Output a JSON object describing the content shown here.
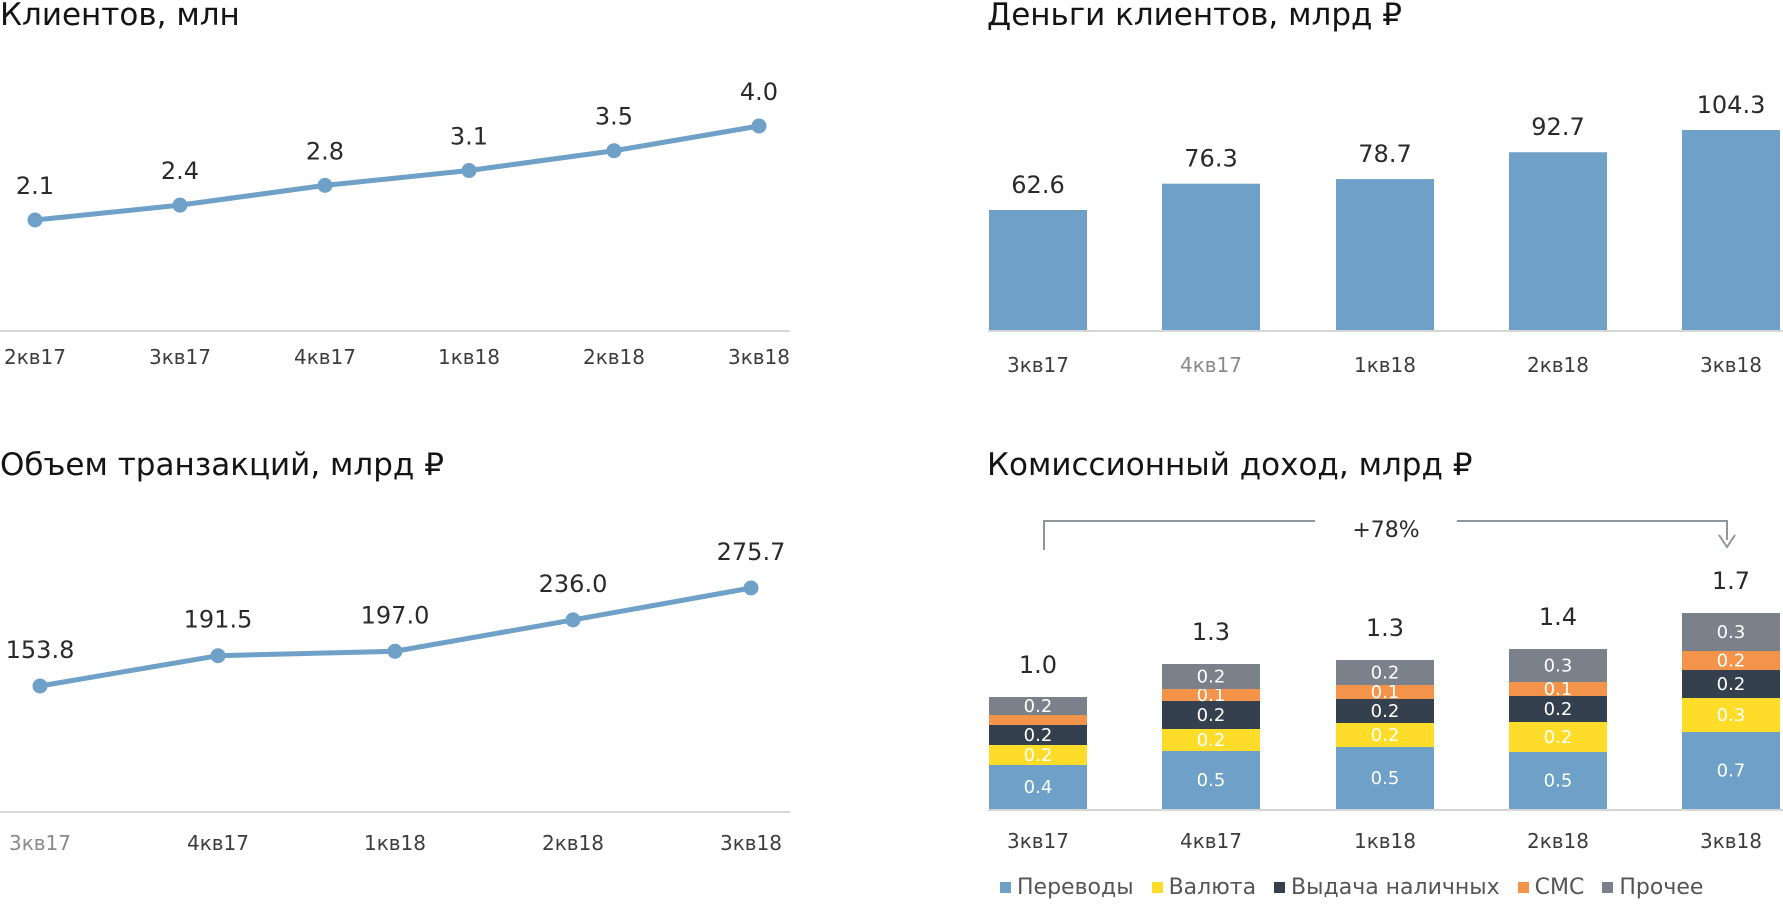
{
  "colors": {
    "line": "#6fa1c8",
    "axis": "#d6d6d6",
    "transfers": "#6fa1c8",
    "currency": "#fddc2a",
    "cash": "#34404e",
    "sms": "#f4944a",
    "other": "#7b818a",
    "bracket": "#8e969e"
  },
  "chart_data": [
    {
      "type": "line",
      "title": "Клиентов, млн",
      "categories": [
        "2кв17",
        "3кв17",
        "4кв17",
        "1кв18",
        "2кв18",
        "3кв18"
      ],
      "values": [
        2.1,
        2.4,
        2.8,
        3.1,
        3.5,
        4.0
      ],
      "value_labels": [
        "2.1",
        "2.4",
        "2.8",
        "3.1",
        "3.5",
        "4.0"
      ],
      "grid": false
    },
    {
      "type": "bar",
      "title": "Деньги клиентов, млрд ₽",
      "categories": [
        "3кв17",
        "4кв17",
        "1кв18",
        "2кв18",
        "3кв18"
      ],
      "values": [
        62.6,
        76.3,
        78.7,
        92.7,
        104.3
      ],
      "value_labels": [
        "62.6",
        "76.3",
        "78.7",
        "92.7",
        "104.3"
      ],
      "grid": false
    },
    {
      "type": "line",
      "title": "Объем транзакций, млрд ₽",
      "categories": [
        "3кв17",
        "4кв17",
        "1кв18",
        "2кв18",
        "3кв18"
      ],
      "values": [
        153.8,
        191.5,
        197.0,
        236.0,
        275.7
      ],
      "value_labels": [
        "153.8",
        "191.5",
        "197.0",
        "236.0",
        "275.7"
      ],
      "grid": false
    },
    {
      "type": "bar",
      "stacked": true,
      "title": "Комиссионный доход, млрд ₽",
      "categories": [
        "3кв17",
        "4кв17",
        "1кв18",
        "2кв18",
        "3кв18"
      ],
      "totals": [
        "1.0",
        "1.3",
        "1.3",
        "1.4",
        "1.7"
      ],
      "growth_label": "+78%",
      "legend_position": "bottom",
      "series": [
        {
          "name": "Переводы",
          "color_key": "transfers",
          "values": [
            0.4,
            0.5,
            0.5,
            0.5,
            0.7
          ],
          "labels": [
            "0.4",
            "0.5",
            "0.5",
            "0.5",
            "0.7"
          ]
        },
        {
          "name": "Валюта",
          "color_key": "currency",
          "values": [
            0.2,
            0.2,
            0.2,
            0.2,
            0.3
          ],
          "labels": [
            "0.2",
            "0.2",
            "0.2",
            "0.2",
            "0.3"
          ]
        },
        {
          "name": "Выдача наличных",
          "color_key": "cash",
          "values": [
            0.2,
            0.2,
            0.2,
            0.2,
            0.2
          ],
          "labels": [
            "0.2",
            "0.2",
            "0.2",
            "0.2",
            "0.2"
          ]
        },
        {
          "name": "СМС",
          "color_key": "sms",
          "values": [
            0.1,
            0.1,
            0.1,
            0.1,
            0.2
          ],
          "labels": [
            "",
            "0.1",
            "0.1",
            "0.1",
            "0.2"
          ]
        },
        {
          "name": "Прочее",
          "color_key": "other",
          "values": [
            0.2,
            0.2,
            0.2,
            0.3,
            0.3
          ],
          "labels": [
            "0.2",
            "0.2",
            "0.2",
            "0.3",
            "0.3"
          ]
        }
      ]
    }
  ]
}
